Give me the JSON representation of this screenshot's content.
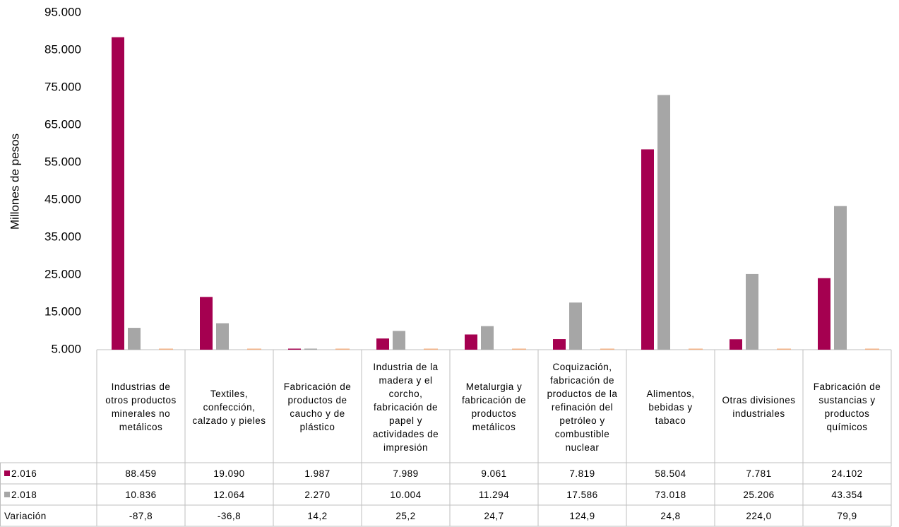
{
  "chart_data": {
    "type": "bar",
    "y_label": "Millones de pesos",
    "categories": [
      "Industrias de otros productos minerales no metálicos",
      "Textiles, confección, calzado y pieles",
      "Fabricación de productos de caucho y de plástico",
      "Industria de la madera y el corcho, fabricación de papel y actividades de impresión",
      "Metalurgia y fabricación de productos metálicos",
      "Coquización, fabricación de productos de la refinación del petróleo y combustible nuclear",
      "Alimentos, bebidas y tabaco",
      "Otras divisiones industriales",
      "Fabricación de sustancias y productos químicos"
    ],
    "series": [
      {
        "name": "2.016",
        "color": "#a50050",
        "values": [
          88459,
          19090,
          1987,
          7989,
          9061,
          7819,
          58504,
          7781,
          24102
        ],
        "value_labels": [
          "88.459",
          "19.090",
          "1.987",
          "7.989",
          "9.061",
          "7.819",
          "58.504",
          "7.781",
          "24.102"
        ]
      },
      {
        "name": "2.018",
        "color": "#a6a6a6",
        "values": [
          10836,
          12064,
          2270,
          10004,
          11294,
          17586,
          73018,
          25206,
          43354
        ],
        "value_labels": [
          "10.836",
          "12.064",
          "2.270",
          "10.004",
          "11.294",
          "17.586",
          "73.018",
          "25.206",
          "43.354"
        ]
      },
      {
        "name": "Variación",
        "color": "#f4b183",
        "values": [
          -87.8,
          -36.8,
          14.2,
          25.2,
          24.7,
          124.9,
          24.8,
          224.0,
          79.9
        ],
        "value_labels": [
          "-87,8",
          "-36,8",
          "14,2",
          "25,2",
          "24,7",
          "124,9",
          "24,8",
          "224,0",
          "79,9"
        ]
      }
    ],
    "ylim": [
      5000,
      95000
    ],
    "yticks": [
      {
        "value": 5000,
        "label": "5.000"
      },
      {
        "value": 15000,
        "label": "15.000"
      },
      {
        "value": 25000,
        "label": "25.000"
      },
      {
        "value": 35000,
        "label": "35.000"
      },
      {
        "value": 45000,
        "label": "45.000"
      },
      {
        "value": 55000,
        "label": "55.000"
      },
      {
        "value": 65000,
        "label": "65.000"
      },
      {
        "value": 75000,
        "label": "75.000"
      },
      {
        "value": 85000,
        "label": "85.000"
      },
      {
        "value": 95000,
        "label": "95.000"
      }
    ],
    "grid": false
  }
}
